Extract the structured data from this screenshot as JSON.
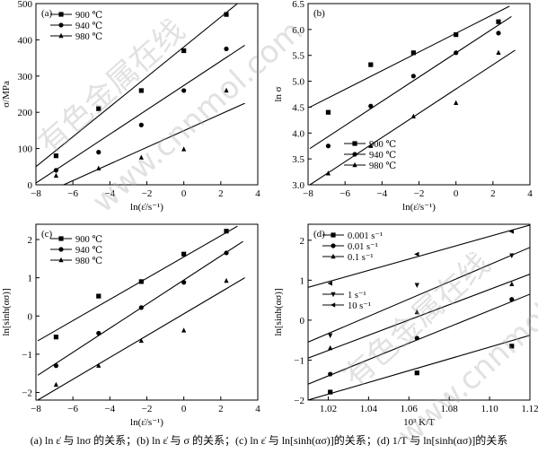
{
  "caption": "(a) ln ε̇ 与 lnσ 的关系；(b) ln ε̇ 与 σ 的关系；(c) ln ε̇ 与 ln[sinh(ασ)]的关系；(d) 1/T 与 ln[sinh(ασ)]的关系",
  "watermarks": [
    "有色金属在线",
    "www.cnnmol.com",
    "有色金属在线",
    "www.cnnmol.com"
  ],
  "chart_data": [
    {
      "type": "scatter",
      "panel_label": "(a)",
      "xlabel": "ln(ε̇/s⁻¹)",
      "ylabel": "σ/MPa",
      "xlim": [
        -8,
        4
      ],
      "ylim": [
        0,
        500
      ],
      "xticks": [
        -8,
        -6,
        -4,
        -2,
        0,
        2,
        4
      ],
      "yticks": [
        0,
        100,
        200,
        300,
        400,
        500
      ],
      "legend_position": "top-left",
      "series": [
        {
          "name": "900 ℃",
          "marker": "square",
          "x": [
            -6.91,
            -4.61,
            -2.3,
            0,
            2.3
          ],
          "y": [
            80,
            210,
            260,
            370,
            470
          ],
          "fit": [
            [
              -8,
              50
            ],
            [
              2.9,
              500
            ]
          ]
        },
        {
          "name": "940 ℃",
          "marker": "circle",
          "x": [
            -6.91,
            -4.61,
            -2.3,
            0,
            2.3
          ],
          "y": [
            40,
            90,
            165,
            260,
            375
          ],
          "fit": [
            [
              -8,
              5
            ],
            [
              3.3,
              385
            ]
          ]
        },
        {
          "name": "980 ℃",
          "marker": "triangle",
          "x": [
            -6.91,
            -4.61,
            -2.3,
            0,
            2.3
          ],
          "y": [
            25,
            45,
            75,
            98,
            260
          ],
          "fit": [
            [
              -6.5,
              0
            ],
            [
              3.3,
              225
            ]
          ]
        }
      ]
    },
    {
      "type": "scatter",
      "panel_label": "(b)",
      "xlabel": "ln(ε̇/s⁻¹)",
      "ylabel": "ln σ",
      "xlim": [
        -8,
        4
      ],
      "ylim": [
        3.0,
        6.5
      ],
      "xticks": [
        -8,
        -6,
        -4,
        -2,
        0,
        2,
        4
      ],
      "yticks": [
        3.0,
        3.5,
        4.0,
        4.5,
        5.0,
        5.5,
        6.0,
        6.5
      ],
      "legend_position": "bottom-right",
      "series": [
        {
          "name": "900 ℃",
          "marker": "square",
          "x": [
            -6.91,
            -4.61,
            -2.3,
            0,
            2.3
          ],
          "y": [
            4.4,
            5.32,
            5.55,
            5.9,
            6.15
          ],
          "fit": [
            [
              -7.9,
              4.5
            ],
            [
              2.9,
              6.45
            ]
          ]
        },
        {
          "name": "940 ℃",
          "marker": "circle",
          "x": [
            -6.91,
            -4.61,
            -2.3,
            0,
            2.3
          ],
          "y": [
            3.75,
            4.52,
            5.1,
            5.55,
            5.93
          ],
          "fit": [
            [
              -7.9,
              3.7
            ],
            [
              3.0,
              6.25
            ]
          ]
        },
        {
          "name": "980 ℃",
          "marker": "triangle",
          "x": [
            -6.91,
            -4.61,
            -2.3,
            0,
            2.3
          ],
          "y": [
            3.22,
            3.75,
            4.32,
            4.58,
            5.55
          ],
          "fit": [
            [
              -7.9,
              3.0
            ],
            [
              3.2,
              5.6
            ]
          ]
        }
      ]
    },
    {
      "type": "scatter",
      "panel_label": "(c)",
      "xlabel": "ln(ε̇/s⁻¹)",
      "ylabel": "ln[sinh(ασ)]",
      "xlim": [
        -8,
        4
      ],
      "ylim": [
        -2.2,
        2.4
      ],
      "xticks": [
        -8,
        -6,
        -4,
        -2,
        0,
        2,
        4
      ],
      "yticks": [
        -2,
        -1,
        0,
        1,
        2
      ],
      "legend_position": "top-left",
      "series": [
        {
          "name": "900 ℃",
          "marker": "square",
          "x": [
            -6.91,
            -4.61,
            -2.3,
            0,
            2.3
          ],
          "y": [
            -0.55,
            0.52,
            0.9,
            1.62,
            2.22
          ],
          "fit": [
            [
              -7.9,
              -0.65
            ],
            [
              2.9,
              2.35
            ]
          ]
        },
        {
          "name": "940 ℃",
          "marker": "circle",
          "x": [
            -6.91,
            -4.61,
            -2.3,
            0,
            2.3
          ],
          "y": [
            -1.3,
            -0.45,
            0.22,
            0.88,
            1.65
          ],
          "fit": [
            [
              -7.9,
              -1.55
            ],
            [
              3.2,
              1.95
            ]
          ]
        },
        {
          "name": "980 ℃",
          "marker": "triangle",
          "x": [
            -6.91,
            -4.61,
            -2.3,
            0,
            2.3
          ],
          "y": [
            -1.8,
            -1.3,
            -0.65,
            -0.38,
            0.92
          ],
          "fit": [
            [
              -7.9,
              -2.2
            ],
            [
              3.3,
              1.0
            ]
          ]
        }
      ]
    },
    {
      "type": "scatter",
      "panel_label": "(d)",
      "xlabel": "10³ K/T",
      "ylabel": "ln[sinh(ασ)]",
      "xlim": [
        1.01,
        1.12
      ],
      "ylim": [
        -2,
        2.4
      ],
      "xticks": [
        1.02,
        1.04,
        1.06,
        1.08,
        1.1,
        1.12
      ],
      "xtick_labels": [
        "1.02",
        "1.04",
        "1.06",
        "1.08",
        "1.10",
        "1.12"
      ],
      "yticks": [
        -2,
        -1,
        0,
        1,
        2
      ],
      "legend_groups": [
        {
          "position": "top-left",
          "names": [
            "0.001 s⁻¹",
            "0.01 s⁻¹",
            "0.1 s⁻¹"
          ]
        },
        {
          "position": "middle-left",
          "names": [
            "1 s⁻¹",
            "10 s⁻¹"
          ]
        }
      ],
      "series": [
        {
          "name": "0.001 s⁻¹",
          "marker": "square",
          "x": [
            1.021,
            1.064,
            1.111
          ],
          "y": [
            -1.8,
            -1.32,
            -0.65
          ],
          "fit": [
            [
              1.01,
              -2.0
            ],
            [
              1.12,
              -0.38
            ]
          ]
        },
        {
          "name": "0.01 s⁻¹",
          "marker": "circle",
          "x": [
            1.021,
            1.064,
            1.111
          ],
          "y": [
            -1.35,
            -0.45,
            0.52
          ],
          "fit": [
            [
              1.01,
              -1.6
            ],
            [
              1.12,
              0.65
            ]
          ]
        },
        {
          "name": "0.1 s⁻¹",
          "marker": "triangle",
          "x": [
            1.021,
            1.064,
            1.111
          ],
          "y": [
            -0.7,
            0.2,
            0.9
          ],
          "fit": [
            [
              1.01,
              -0.95
            ],
            [
              1.12,
              1.15
            ]
          ]
        },
        {
          "name": "1 s⁻¹",
          "marker": "triangle-down",
          "x": [
            1.021,
            1.064,
            1.111
          ],
          "y": [
            -0.38,
            0.88,
            1.62
          ],
          "fit": [
            [
              1.01,
              -0.55
            ],
            [
              1.12,
              1.82
            ]
          ]
        },
        {
          "name": "10 s⁻¹",
          "marker": "triangle-left",
          "x": [
            1.021,
            1.064,
            1.111
          ],
          "y": [
            0.92,
            1.65,
            2.22
          ],
          "fit": [
            [
              1.01,
              0.82
            ],
            [
              1.12,
              2.38
            ]
          ]
        }
      ]
    }
  ]
}
